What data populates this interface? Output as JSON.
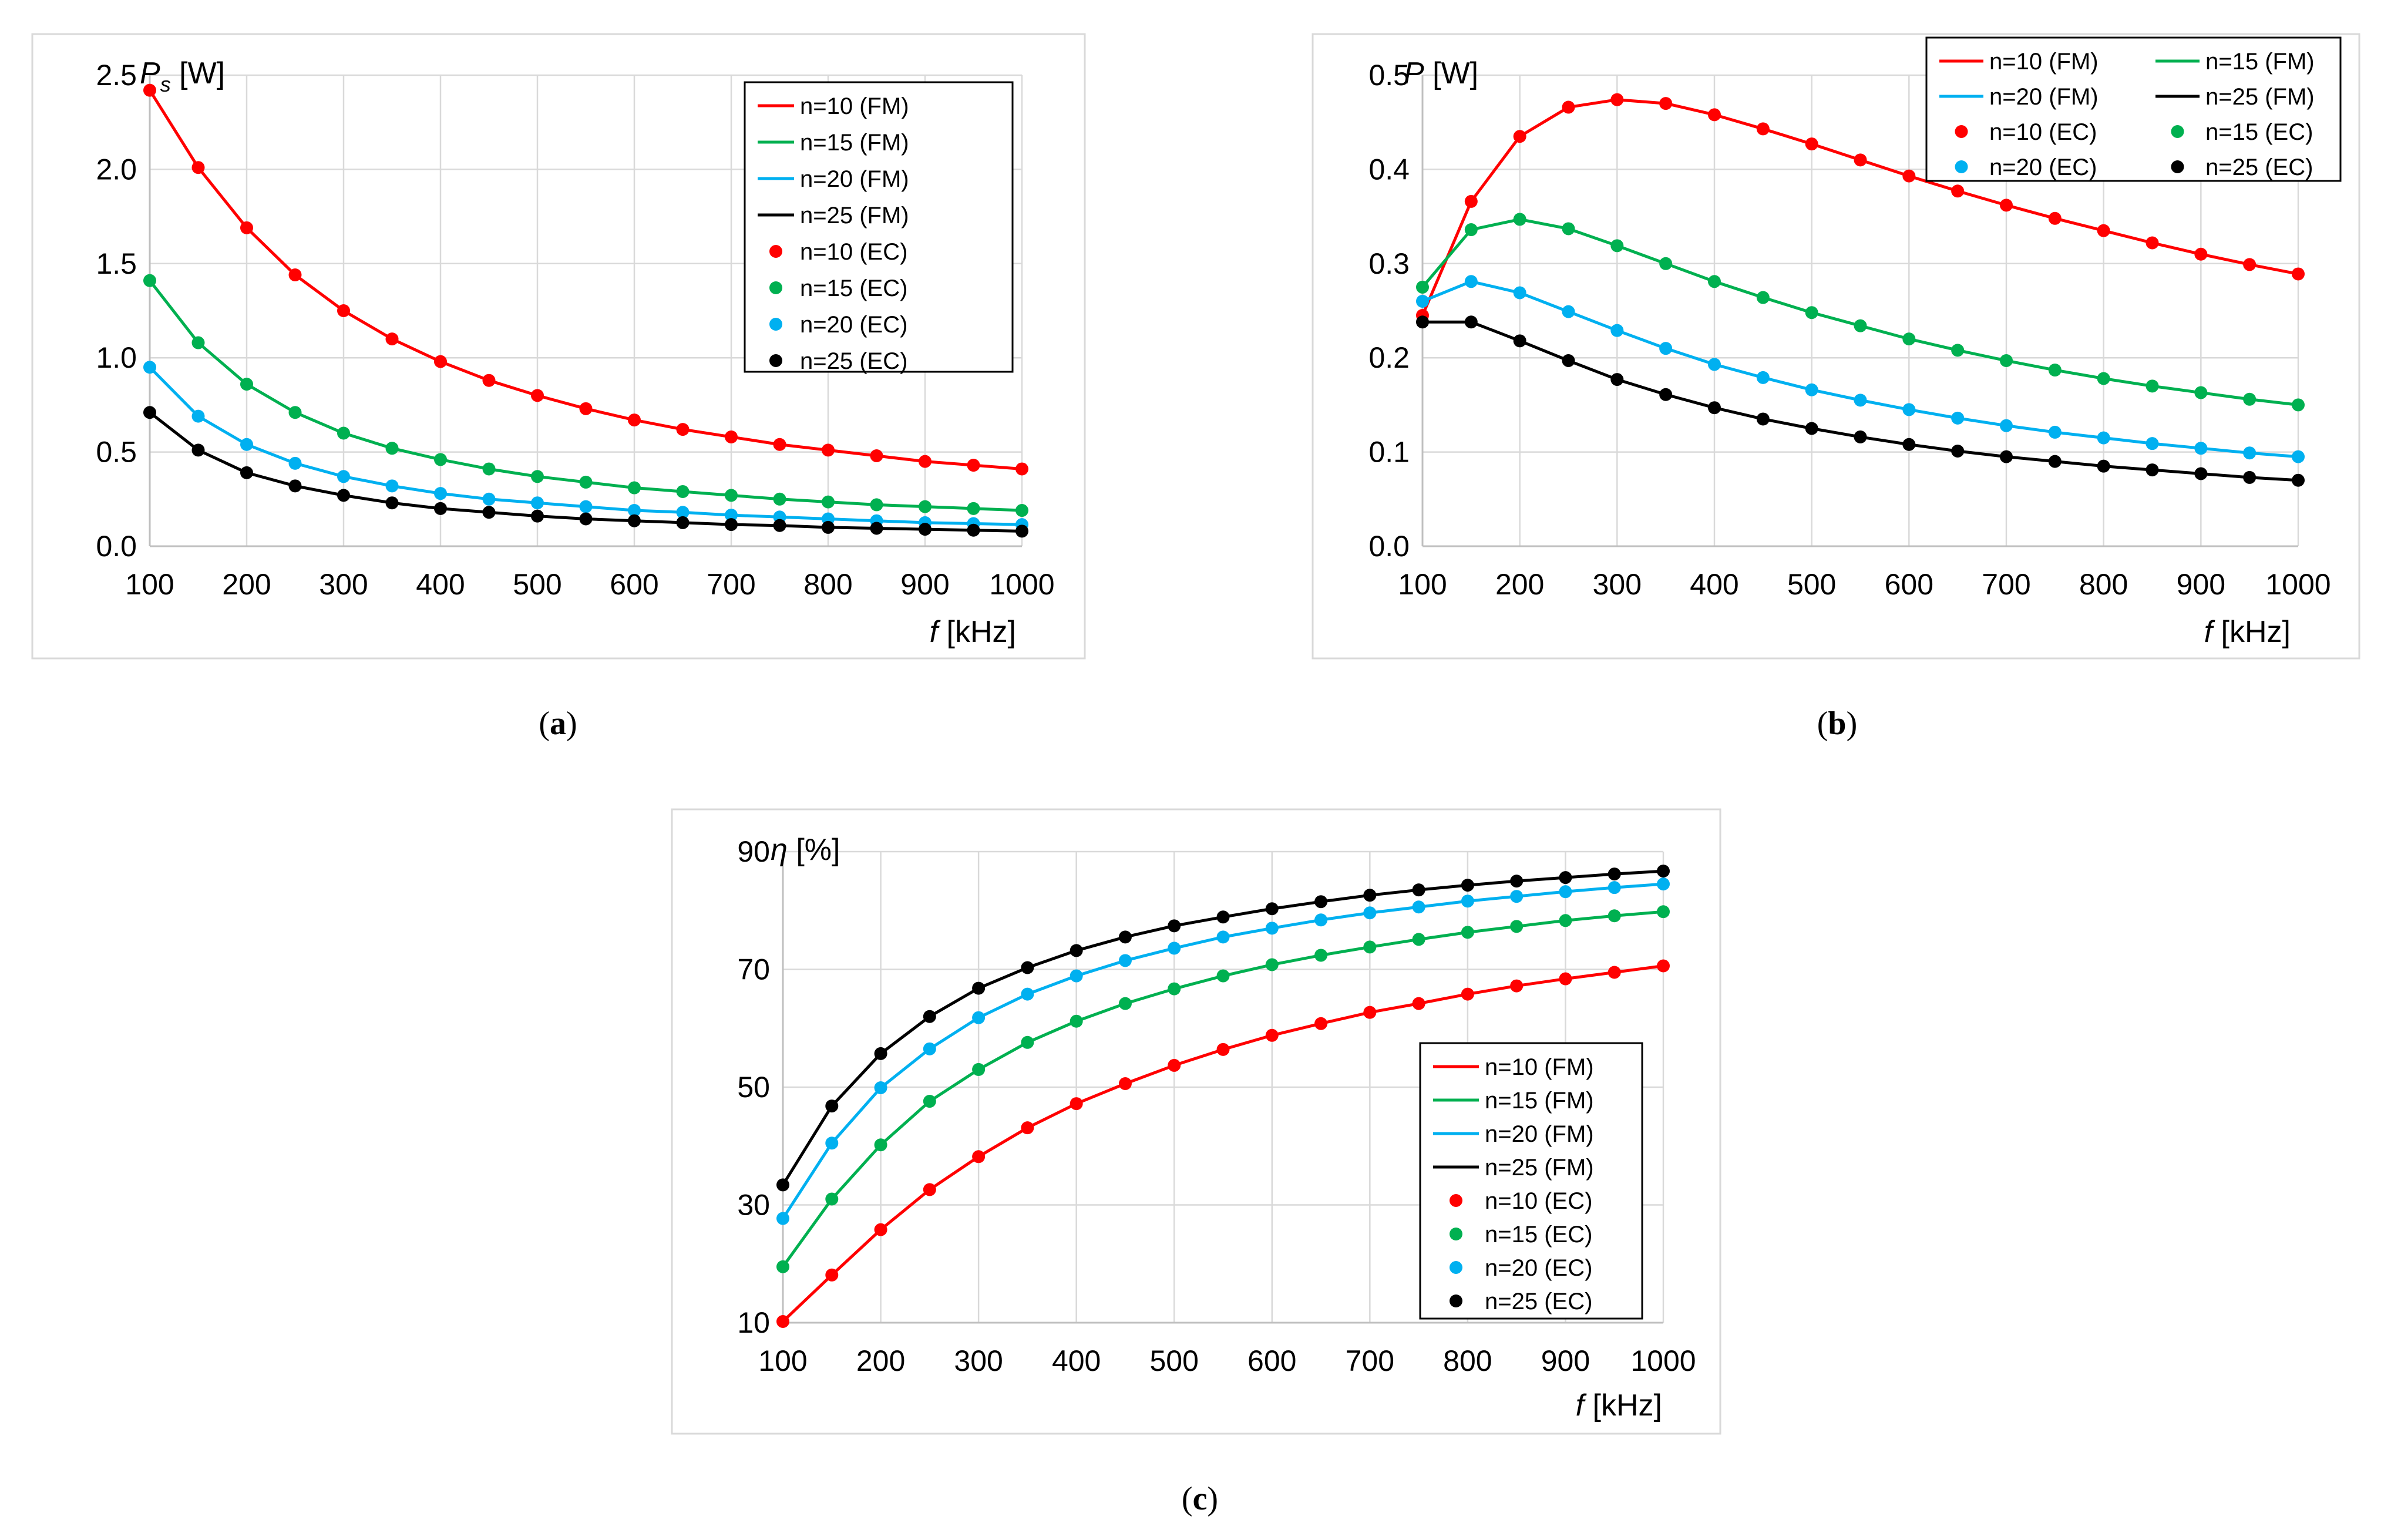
{
  "x_values": [
    100,
    150,
    200,
    250,
    300,
    350,
    400,
    450,
    500,
    550,
    600,
    650,
    700,
    750,
    800,
    850,
    900,
    950,
    1000
  ],
  "colors": {
    "n10": "#ff0000",
    "n15": "#00b050",
    "n20": "#00b0f0",
    "n25": "#000000"
  },
  "chart_data": [
    {
      "id": "a",
      "type": "line",
      "caption": "a",
      "ylabel_symbol": "P",
      "ylabel_sub": "s",
      "ylabel_unit": "[W]",
      "xlabel_symbol": "f",
      "xlabel_unit": "[kHz]",
      "xlim": [
        100,
        1000
      ],
      "ylim": [
        0,
        2.5
      ],
      "x_ticks": [
        "100",
        "200",
        "300",
        "400",
        "500",
        "600",
        "700",
        "800",
        "900",
        "1000"
      ],
      "y_ticks": [
        "0.0",
        "0.5",
        "1.0",
        "1.5",
        "2.0",
        "2.5"
      ],
      "legend_position": "top-right",
      "legend": [
        "n=10 (FM)",
        "n=15 (FM)",
        "n=20 (FM)",
        "n=25 (FM)",
        "n=10 (EC)",
        "n=15 (EC)",
        "n=20 (EC)",
        "n=25 (EC)"
      ],
      "series": [
        {
          "name": "n=10",
          "values": [
            2.42,
            2.01,
            1.69,
            1.44,
            1.25,
            1.1,
            0.98,
            0.88,
            0.8,
            0.73,
            0.67,
            0.62,
            0.58,
            0.54,
            0.51,
            0.48,
            0.45,
            0.43,
            0.41
          ]
        },
        {
          "name": "n=15",
          "values": [
            1.41,
            1.08,
            0.86,
            0.71,
            0.6,
            0.52,
            0.46,
            0.41,
            0.37,
            0.34,
            0.31,
            0.29,
            0.27,
            0.25,
            0.235,
            0.22,
            0.21,
            0.2,
            0.19
          ]
        },
        {
          "name": "n=20",
          "values": [
            0.95,
            0.69,
            0.54,
            0.44,
            0.37,
            0.32,
            0.28,
            0.25,
            0.23,
            0.21,
            0.19,
            0.18,
            0.165,
            0.155,
            0.145,
            0.135,
            0.125,
            0.12,
            0.115
          ]
        },
        {
          "name": "n=25",
          "values": [
            0.71,
            0.51,
            0.39,
            0.32,
            0.27,
            0.23,
            0.2,
            0.18,
            0.16,
            0.145,
            0.135,
            0.125,
            0.115,
            0.11,
            0.1,
            0.095,
            0.09,
            0.085,
            0.08
          ]
        }
      ]
    },
    {
      "id": "b",
      "type": "line",
      "caption": "b",
      "ylabel_symbol": "P",
      "ylabel_sub": "",
      "ylabel_unit": "[W]",
      "xlabel_symbol": "f",
      "xlabel_unit": "[kHz]",
      "xlim": [
        100,
        1000
      ],
      "ylim": [
        0,
        0.5
      ],
      "x_ticks": [
        "100",
        "200",
        "300",
        "400",
        "500",
        "600",
        "700",
        "800",
        "900",
        "1000"
      ],
      "y_ticks": [
        "0.0",
        "0.1",
        "0.2",
        "0.3",
        "0.4",
        "0.5"
      ],
      "legend_position": "top-right",
      "legend": [
        "n=10 (FM)",
        "n=15 (FM)",
        "n=20 (FM)",
        "n=25 (FM)",
        "n=10 (EC)",
        "n=15 (EC)",
        "n=20 (EC)",
        "n=25 (EC)"
      ],
      "series": [
        {
          "name": "n=10",
          "values": [
            0.245,
            0.366,
            0.435,
            0.466,
            0.474,
            0.47,
            0.458,
            0.443,
            0.427,
            0.41,
            0.393,
            0.377,
            0.362,
            0.348,
            0.335,
            0.322,
            0.31,
            0.299,
            0.289
          ]
        },
        {
          "name": "n=15",
          "values": [
            0.275,
            0.336,
            0.347,
            0.337,
            0.319,
            0.3,
            0.281,
            0.264,
            0.248,
            0.234,
            0.22,
            0.208,
            0.197,
            0.187,
            0.178,
            0.17,
            0.163,
            0.156,
            0.15
          ]
        },
        {
          "name": "n=20",
          "values": [
            0.26,
            0.281,
            0.269,
            0.249,
            0.229,
            0.21,
            0.193,
            0.179,
            0.166,
            0.155,
            0.145,
            0.136,
            0.128,
            0.121,
            0.115,
            0.109,
            0.104,
            0.099,
            0.095
          ]
        },
        {
          "name": "n=25",
          "values": [
            0.238,
            0.238,
            0.218,
            0.197,
            0.177,
            0.161,
            0.147,
            0.135,
            0.125,
            0.116,
            0.108,
            0.101,
            0.095,
            0.09,
            0.085,
            0.081,
            0.077,
            0.073,
            0.07
          ]
        }
      ]
    },
    {
      "id": "c",
      "type": "line",
      "caption": "c",
      "ylabel_symbol": "η",
      "ylabel_sub": "",
      "ylabel_unit": "[%]",
      "xlabel_symbol": "f",
      "xlabel_unit": "[kHz]",
      "xlim": [
        100,
        1000
      ],
      "ylim": [
        10,
        90
      ],
      "x_ticks": [
        "100",
        "200",
        "300",
        "400",
        "500",
        "600",
        "700",
        "800",
        "900",
        "1000"
      ],
      "y_ticks": [
        "10",
        "30",
        "50",
        "70",
        "90"
      ],
      "legend_position": "lower-right",
      "legend": [
        "n=10 (FM)",
        "n=15 (FM)",
        "n=20 (FM)",
        "n=25 (FM)",
        "n=10 (EC)",
        "n=15 (EC)",
        "n=20 (EC)",
        "n=25 (EC)"
      ],
      "series": [
        {
          "name": "n=10",
          "values": [
            10.2,
            18.1,
            25.8,
            32.6,
            38.2,
            43.1,
            47.2,
            50.6,
            53.7,
            56.4,
            58.8,
            60.8,
            62.7,
            64.2,
            65.8,
            67.2,
            68.4,
            69.5,
            70.6
          ]
        },
        {
          "name": "n=15",
          "values": [
            19.5,
            31.0,
            40.2,
            47.6,
            53.0,
            57.6,
            61.2,
            64.2,
            66.7,
            68.9,
            70.8,
            72.4,
            73.8,
            75.1,
            76.3,
            77.3,
            78.3,
            79.1,
            79.8
          ]
        },
        {
          "name": "n=20",
          "values": [
            27.7,
            40.5,
            49.9,
            56.5,
            61.8,
            65.8,
            68.9,
            71.5,
            73.6,
            75.5,
            77.0,
            78.4,
            79.6,
            80.6,
            81.6,
            82.4,
            83.2,
            83.9,
            84.5
          ]
        },
        {
          "name": "n=25",
          "values": [
            33.4,
            46.8,
            55.7,
            62.0,
            66.8,
            70.3,
            73.2,
            75.5,
            77.4,
            78.9,
            80.3,
            81.5,
            82.6,
            83.5,
            84.3,
            85.0,
            85.6,
            86.2,
            86.7
          ]
        }
      ]
    }
  ]
}
